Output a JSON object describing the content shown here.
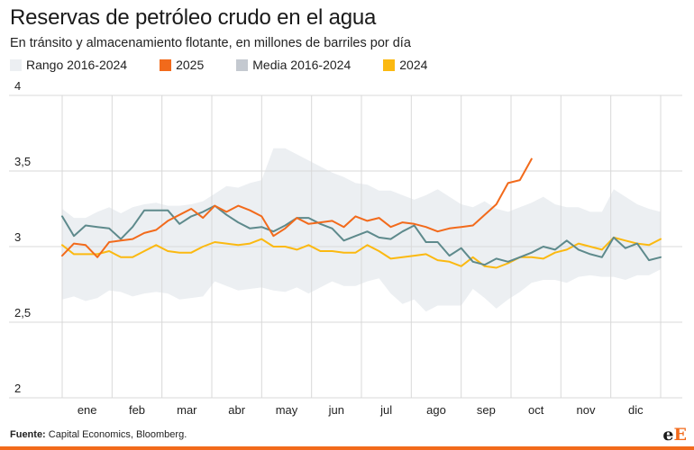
{
  "header": {
    "title": "Reservas de petróleo crudo en el agua",
    "subtitle": "En tránsito y almacenamiento flotante, en millones de barriles por día"
  },
  "footer": {
    "source_label": "Fuente:",
    "source_text": "Capital Economics, Bloomberg."
  },
  "logo": {
    "e": "e",
    "E": "E"
  },
  "colors": {
    "range": "#eceff2",
    "y2025": "#f26a1b",
    "mean": "#5e8a8c",
    "mean_legend": "#c4c9d0",
    "y2024": "#fbb911",
    "grid": "#d9d9d9"
  },
  "chart_data": {
    "type": "line",
    "title": "Reservas de petróleo crudo en el agua",
    "subtitle": "En tránsito y almacenamiento flotante, en millones de barriles por día",
    "xlabel": "",
    "ylabel": "",
    "ylim": [
      2,
      4
    ],
    "yticks": [
      2,
      2.5,
      3,
      3.5,
      4
    ],
    "ytick_labels": [
      "2",
      "2,5",
      "3",
      "3,5",
      "4"
    ],
    "x_unit": "week",
    "xlim": [
      1,
      52
    ],
    "months": [
      "ene",
      "feb",
      "mar",
      "abr",
      "may",
      "jun",
      "jul",
      "ago",
      "sep",
      "oct",
      "nov",
      "dic"
    ],
    "grid": true,
    "legend": {
      "placement": "top-left",
      "entries": [
        "Rango 2016-2024",
        "2025",
        "Media 2016-2024",
        "2024"
      ]
    },
    "weeks": [
      1,
      2,
      3,
      4,
      5,
      6,
      7,
      8,
      9,
      10,
      11,
      12,
      13,
      14,
      15,
      16,
      17,
      18,
      19,
      20,
      21,
      22,
      23,
      24,
      25,
      26,
      27,
      28,
      29,
      30,
      31,
      32,
      33,
      34,
      35,
      36,
      37,
      38,
      39,
      40,
      41,
      42,
      43,
      44,
      45,
      46,
      47,
      48,
      49,
      50,
      51,
      52
    ],
    "range_upper": [
      3.25,
      3.19,
      3.19,
      3.23,
      3.26,
      3.22,
      3.26,
      3.28,
      3.29,
      3.27,
      3.27,
      3.28,
      3.3,
      3.35,
      3.4,
      3.39,
      3.42,
      3.44,
      3.65,
      3.65,
      3.61,
      3.57,
      3.53,
      3.49,
      3.46,
      3.42,
      3.41,
      3.37,
      3.37,
      3.34,
      3.31,
      3.34,
      3.38,
      3.33,
      3.28,
      3.26,
      3.3,
      3.25,
      3.23,
      3.26,
      3.29,
      3.33,
      3.28,
      3.26,
      3.26,
      3.23,
      3.23,
      3.38,
      3.33,
      3.28,
      3.25,
      3.23
    ],
    "range_lower": [
      2.65,
      2.67,
      2.64,
      2.66,
      2.71,
      2.7,
      2.67,
      2.69,
      2.7,
      2.69,
      2.65,
      2.66,
      2.67,
      2.77,
      2.74,
      2.71,
      2.72,
      2.73,
      2.71,
      2.7,
      2.73,
      2.69,
      2.73,
      2.77,
      2.74,
      2.74,
      2.77,
      2.79,
      2.69,
      2.62,
      2.65,
      2.57,
      2.61,
      2.61,
      2.61,
      2.72,
      2.66,
      2.59,
      2.65,
      2.7,
      2.76,
      2.78,
      2.78,
      2.76,
      2.8,
      2.81,
      2.8,
      2.8,
      2.78,
      2.81,
      2.81,
      2.85
    ],
    "series": [
      {
        "name": "Rango 2016-2024",
        "type": "area",
        "note": "uses range_lower / range_upper"
      },
      {
        "name": "2025",
        "values": [
          2.94,
          3.02,
          3.01,
          2.93,
          3.03,
          3.04,
          3.05,
          3.09,
          3.11,
          3.17,
          3.21,
          3.25,
          3.19,
          3.27,
          3.23,
          3.27,
          3.24,
          3.2,
          3.07,
          3.12,
          3.19,
          3.15,
          3.16,
          3.17,
          3.13,
          3.2,
          3.17,
          3.19,
          3.13,
          3.16,
          3.15,
          3.13,
          3.1,
          3.12,
          3.13,
          3.14,
          3.21,
          3.28,
          3.42,
          3.44,
          3.58,
          null,
          null,
          null,
          null,
          null,
          null,
          null,
          null,
          null,
          null,
          null
        ]
      },
      {
        "name": "Media 2016-2024",
        "values": [
          3.2,
          3.07,
          3.14,
          3.13,
          3.12,
          3.05,
          3.13,
          3.24,
          3.24,
          3.24,
          3.15,
          3.2,
          3.23,
          3.27,
          3.21,
          3.16,
          3.12,
          3.13,
          3.1,
          3.14,
          3.19,
          3.19,
          3.15,
          3.12,
          3.04,
          3.07,
          3.1,
          3.06,
          3.05,
          3.1,
          3.14,
          3.03,
          3.03,
          2.94,
          2.99,
          2.9,
          2.88,
          2.92,
          2.9,
          2.93,
          2.96,
          3.0,
          2.98,
          3.04,
          2.98,
          2.95,
          2.93,
          3.06,
          2.99,
          3.02,
          2.91,
          2.93
        ]
      },
      {
        "name": "2024",
        "values": [
          3.01,
          2.95,
          2.95,
          2.95,
          2.97,
          2.93,
          2.93,
          2.97,
          3.01,
          2.97,
          2.96,
          2.96,
          3.0,
          3.03,
          3.02,
          3.01,
          3.02,
          3.05,
          3.0,
          3.0,
          2.98,
          3.01,
          2.97,
          2.97,
          2.96,
          2.96,
          3.01,
          2.97,
          2.92,
          2.93,
          2.94,
          2.95,
          2.91,
          2.9,
          2.87,
          2.93,
          2.87,
          2.86,
          2.89,
          2.93,
          2.93,
          2.92,
          2.96,
          2.98,
          3.02,
          3.0,
          2.98,
          3.06,
          3.04,
          3.02,
          3.01,
          3.05
        ]
      }
    ]
  }
}
